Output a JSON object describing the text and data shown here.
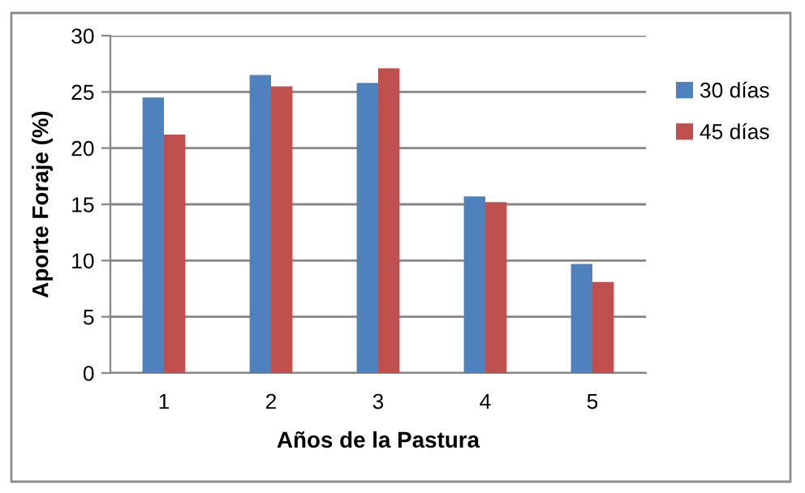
{
  "chart_data": {
    "type": "bar",
    "xlabel": "Años de la Pastura",
    "ylabel": "Aporte Foraje (%)",
    "categories": [
      "1",
      "2",
      "3",
      "4",
      "5"
    ],
    "series": [
      {
        "name": "30 días",
        "color": "#4f81bd",
        "values": [
          24.5,
          26.5,
          25.8,
          15.7,
          9.7
        ]
      },
      {
        "name": "45 días",
        "color": "#c0504d",
        "values": [
          21.2,
          25.5,
          27.1,
          15.2,
          8.1
        ]
      }
    ],
    "ylim": [
      0,
      30
    ],
    "yticks": [
      0,
      5,
      10,
      15,
      20,
      25,
      30
    ],
    "grid": "y",
    "legend": "top right"
  }
}
